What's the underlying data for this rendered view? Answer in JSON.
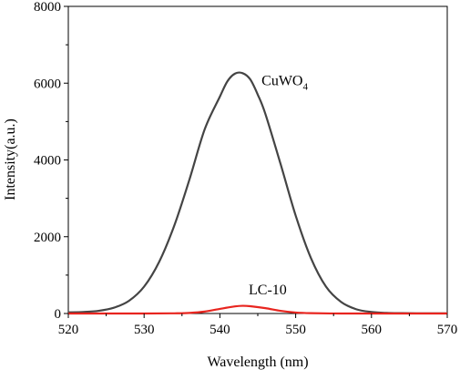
{
  "chart_data": {
    "type": "line",
    "xlabel": "Wavelength (nm)",
    "ylabel": "Intensity(a.u.)",
    "xlim": [
      520,
      570
    ],
    "ylim": [
      0,
      8000
    ],
    "xticks": [
      520,
      530,
      540,
      550,
      560,
      570
    ],
    "yticks": [
      0,
      2000,
      4000,
      6000,
      8000
    ],
    "grid": false,
    "series": [
      {
        "name": "CuWO4",
        "color": "#444444",
        "x": [
          520,
          522,
          524,
          526,
          528,
          530,
          532,
          534,
          536,
          538,
          540,
          541,
          542,
          543,
          544,
          545,
          546,
          548,
          550,
          552,
          554,
          556,
          558,
          560,
          562,
          564,
          566,
          568,
          570
        ],
        "y": [
          30,
          40,
          70,
          150,
          330,
          700,
          1350,
          2300,
          3500,
          4800,
          5650,
          6050,
          6250,
          6260,
          6100,
          5700,
          5200,
          3900,
          2550,
          1450,
          700,
          300,
          110,
          40,
          15,
          8,
          5,
          5,
          5
        ]
      },
      {
        "name": "LC-10",
        "color": "#e8251f",
        "x": [
          520,
          530,
          534,
          536,
          538,
          540,
          542,
          543,
          544,
          546,
          548,
          550,
          552,
          556,
          560,
          570
        ],
        "y": [
          0,
          0,
          5,
          15,
          50,
          120,
          185,
          200,
          190,
          140,
          70,
          25,
          8,
          0,
          0,
          0
        ]
      }
    ],
    "annotations": [
      {
        "text": "CuWO",
        "sub": "4",
        "x": 545.5,
        "y": 5950
      },
      {
        "text": "LC-10",
        "sub": "",
        "x": 543.8,
        "y": 500
      }
    ]
  }
}
